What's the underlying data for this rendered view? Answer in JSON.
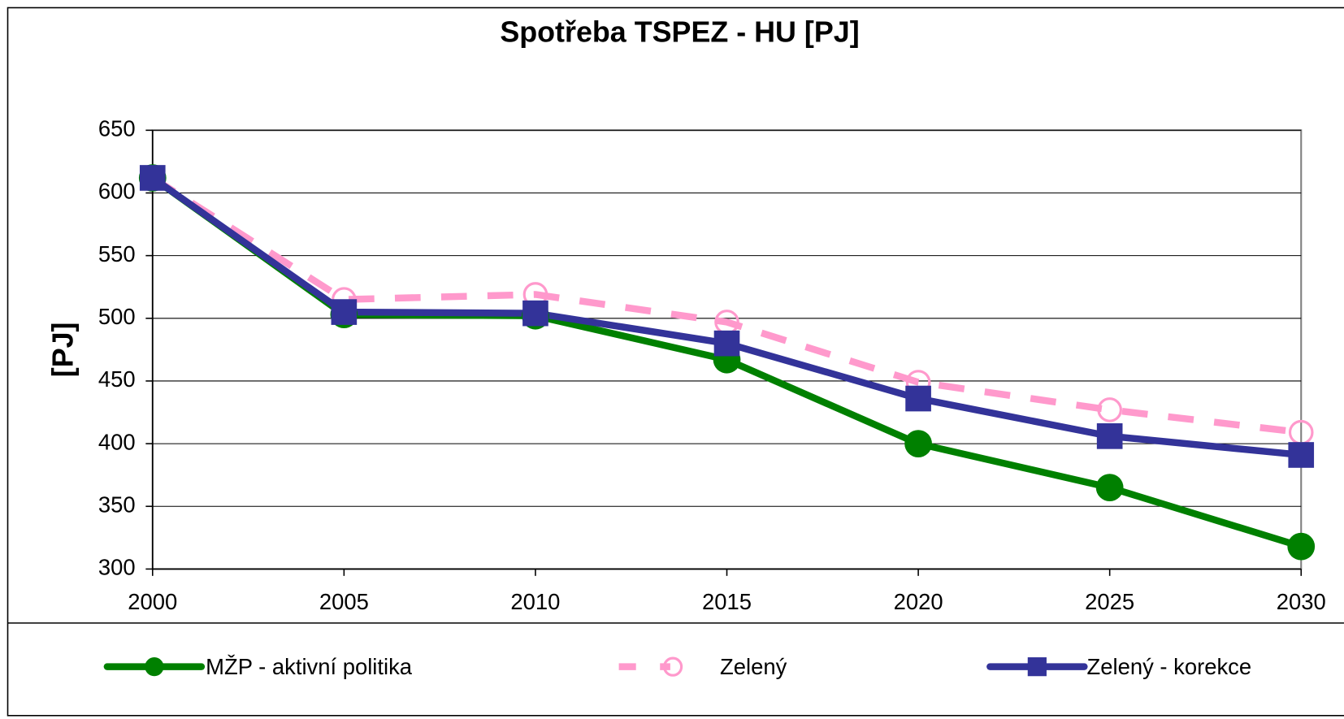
{
  "chart_data": {
    "type": "line",
    "title": "Spotřeba TSPEZ - HU [PJ]",
    "y_label": "[PJ]",
    "x": [
      2000,
      2005,
      2010,
      2015,
      2020,
      2025,
      2030
    ],
    "series": [
      {
        "name": "MŽP - aktivní politika",
        "color": "#008000",
        "values": [
          612,
          503,
          502,
          467,
          400,
          365,
          318
        ]
      },
      {
        "name": "Zelený",
        "color": "#ff99cc",
        "values": [
          612,
          515,
          519,
          497,
          449,
          427,
          409
        ]
      },
      {
        "name": "Zelený - korekce",
        "color": "#333399",
        "values": [
          612,
          505,
          504,
          480,
          436,
          406,
          391
        ]
      }
    ],
    "xlim": [
      2000,
      2030
    ],
    "xticks": [
      2000,
      2005,
      2010,
      2015,
      2020,
      2025,
      2030
    ],
    "ylim": [
      300,
      650
    ],
    "yticks": [
      300,
      350,
      400,
      450,
      500,
      550,
      600,
      650
    ],
    "grid": true
  }
}
